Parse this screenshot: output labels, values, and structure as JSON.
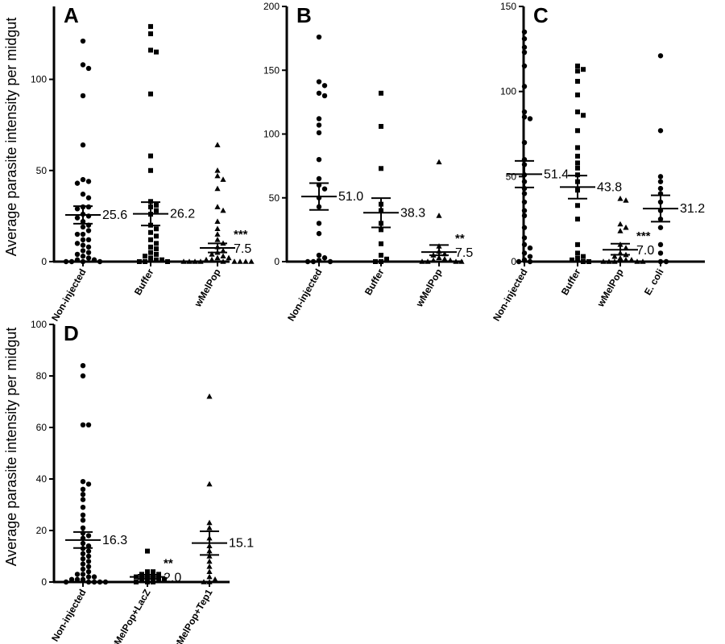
{
  "figure": {
    "ylabel_top": "Average parasite intensity per midgut",
    "ylabel_bottom": "Average parasite intensity per midgut"
  },
  "chart_data": [
    {
      "panel": "A",
      "type": "scatter",
      "ylim": [
        0,
        140
      ],
      "yticks": [
        0,
        50,
        100
      ],
      "categories": [
        "Non-injected",
        "Buffer",
        "wMelPop"
      ],
      "groups": [
        {
          "category": "Non-injected",
          "marker": "circle",
          "values": [
            121,
            108,
            106,
            91,
            64,
            45,
            44,
            43,
            37,
            35,
            30,
            30,
            29,
            26,
            25,
            24,
            22,
            20,
            19,
            17,
            15,
            15,
            12,
            12,
            10,
            9,
            8,
            6,
            5,
            4,
            3,
            2,
            1,
            1,
            0,
            0,
            0,
            0
          ],
          "mean": 25.6,
          "sem_low": 20.8,
          "sem_high": 30.4,
          "mean_label": "25.6",
          "sig": ""
        },
        {
          "category": "Buffer",
          "marker": "square",
          "values": [
            129,
            125,
            116,
            115,
            92,
            58,
            50,
            33,
            31,
            30,
            28,
            26,
            20,
            18,
            16,
            14,
            12,
            10,
            8,
            7,
            5,
            4,
            3,
            2,
            1,
            1,
            0,
            0,
            0
          ],
          "mean": 26.2,
          "sem_low": 19.8,
          "sem_high": 32.6,
          "mean_label": "26.2",
          "sig": ""
        },
        {
          "category": "wMelPop",
          "marker": "triangle",
          "values": [
            64,
            50,
            47,
            45,
            40,
            30,
            28,
            22,
            18,
            15,
            12,
            10,
            8,
            6,
            5,
            4,
            3,
            2,
            2,
            1,
            1,
            0,
            0,
            0,
            0,
            0,
            0,
            0,
            0,
            0
          ],
          "mean": 7.5,
          "sem_low": 5.0,
          "sem_high": 10.0,
          "mean_label": "7.5",
          "sig": "***"
        }
      ]
    },
    {
      "panel": "B",
      "type": "scatter",
      "ylim": [
        0,
        200
      ],
      "yticks": [
        0,
        50,
        100,
        150,
        200
      ],
      "categories": [
        "Non-injected",
        "Buffer",
        "wMelPop"
      ],
      "groups": [
        {
          "category": "Non-injected",
          "marker": "circle",
          "values": [
            176,
            141,
            138,
            132,
            130,
            112,
            107,
            101,
            80,
            65,
            60,
            57,
            50,
            43,
            30,
            22,
            5,
            3,
            1,
            0,
            0,
            0
          ],
          "mean": 51.0,
          "sem_low": 40.5,
          "sem_high": 61.5,
          "mean_label": "51.0",
          "sig": ""
        },
        {
          "category": "Buffer",
          "marker": "square",
          "values": [
            132,
            106,
            73,
            45,
            40,
            30,
            25,
            14,
            5,
            2,
            0,
            0
          ],
          "mean": 38.3,
          "sem_low": 26.8,
          "sem_high": 49.8,
          "mean_label": "38.3",
          "sig": ""
        },
        {
          "category": "wMelPop",
          "marker": "triangle",
          "values": [
            78,
            36,
            12,
            8,
            6,
            5,
            3,
            2,
            1,
            1,
            0,
            0,
            0,
            0
          ],
          "mean": 7.5,
          "sem_low": 5.0,
          "sem_high": 13.0,
          "mean_label": "7.5",
          "sig": "**"
        }
      ]
    },
    {
      "panel": "C",
      "type": "scatter",
      "ylim": [
        0,
        150
      ],
      "yticks": [
        0,
        50,
        100,
        150
      ],
      "categories": [
        "Non-injected",
        "Buffer",
        "wMelPop",
        "E. coli"
      ],
      "groups": [
        {
          "category": "Non-injected",
          "marker": "circle",
          "values": [
            135,
            131,
            126,
            123,
            115,
            103,
            88,
            85,
            84,
            70,
            60,
            57,
            51,
            47,
            43,
            40,
            35,
            30,
            27,
            20,
            14,
            10,
            8,
            5,
            3,
            1,
            0,
            0
          ],
          "mean": 51.4,
          "sem_low": 43.6,
          "sem_high": 59.2,
          "mean_label": "51.4",
          "sig": ""
        },
        {
          "category": "Buffer",
          "marker": "square",
          "values": [
            115,
            113,
            112,
            106,
            98,
            88,
            86,
            77,
            67,
            62,
            58,
            55,
            51,
            47,
            42,
            33,
            25,
            10,
            5,
            3,
            2,
            1,
            0,
            0
          ],
          "mean": 43.8,
          "sem_low": 37.0,
          "sem_high": 50.6,
          "mean_label": "43.8",
          "sig": ""
        },
        {
          "category": "wMelPop",
          "marker": "triangle",
          "values": [
            37,
            36,
            22,
            20,
            18,
            10,
            8,
            5,
            4,
            3,
            2,
            1,
            1,
            0,
            0,
            0,
            0,
            0
          ],
          "mean": 7.0,
          "sem_low": 4.0,
          "sem_high": 10.5,
          "mean_label": "7.0",
          "sig": "***"
        },
        {
          "category": "E. coli",
          "marker": "circle",
          "values": [
            121,
            77,
            50,
            47,
            43,
            40,
            35,
            30,
            25,
            20,
            10,
            5,
            0,
            0
          ],
          "mean": 31.2,
          "sem_low": 23.5,
          "sem_high": 39.0,
          "mean_label": "31.2",
          "sig": ""
        }
      ]
    },
    {
      "panel": "D",
      "type": "scatter",
      "ylim": [
        0,
        100
      ],
      "yticks": [
        0,
        20,
        40,
        60,
        80,
        100
      ],
      "categories": [
        "Non-injected",
        "wMelPop+LacZ",
        "wMelPop+Tep1"
      ],
      "groups": [
        {
          "category": "Non-injected",
          "marker": "circle",
          "values": [
            84,
            80,
            61,
            61,
            39,
            38,
            36,
            34,
            32,
            29,
            26,
            24,
            21,
            19,
            18,
            17,
            15,
            14,
            13,
            12,
            11,
            10,
            9,
            8,
            7,
            6,
            5,
            4,
            3,
            3,
            2,
            2,
            1,
            1,
            1,
            0,
            0,
            0,
            0,
            0
          ],
          "mean": 16.3,
          "sem_low": 13.2,
          "sem_high": 19.4,
          "mean_label": "16.3",
          "sig": ""
        },
        {
          "category": "wMelPop+LacZ",
          "marker": "square",
          "values": [
            12,
            4,
            4,
            3,
            3,
            2,
            2,
            2,
            1,
            1,
            1,
            0,
            0,
            0
          ],
          "mean": 2.0,
          "sem_low": 1.2,
          "sem_high": 2.8,
          "mean_label": "2.0",
          "sig": "**"
        },
        {
          "category": "wMelPop+Tep1",
          "marker": "triangle",
          "values": [
            72,
            38,
            23,
            21,
            17,
            14,
            12,
            10,
            8,
            6,
            4,
            2,
            1,
            0,
            0
          ],
          "mean": 15.1,
          "sem_low": 10.5,
          "sem_high": 19.7,
          "mean_label": "15.1",
          "sig": ""
        }
      ]
    }
  ]
}
